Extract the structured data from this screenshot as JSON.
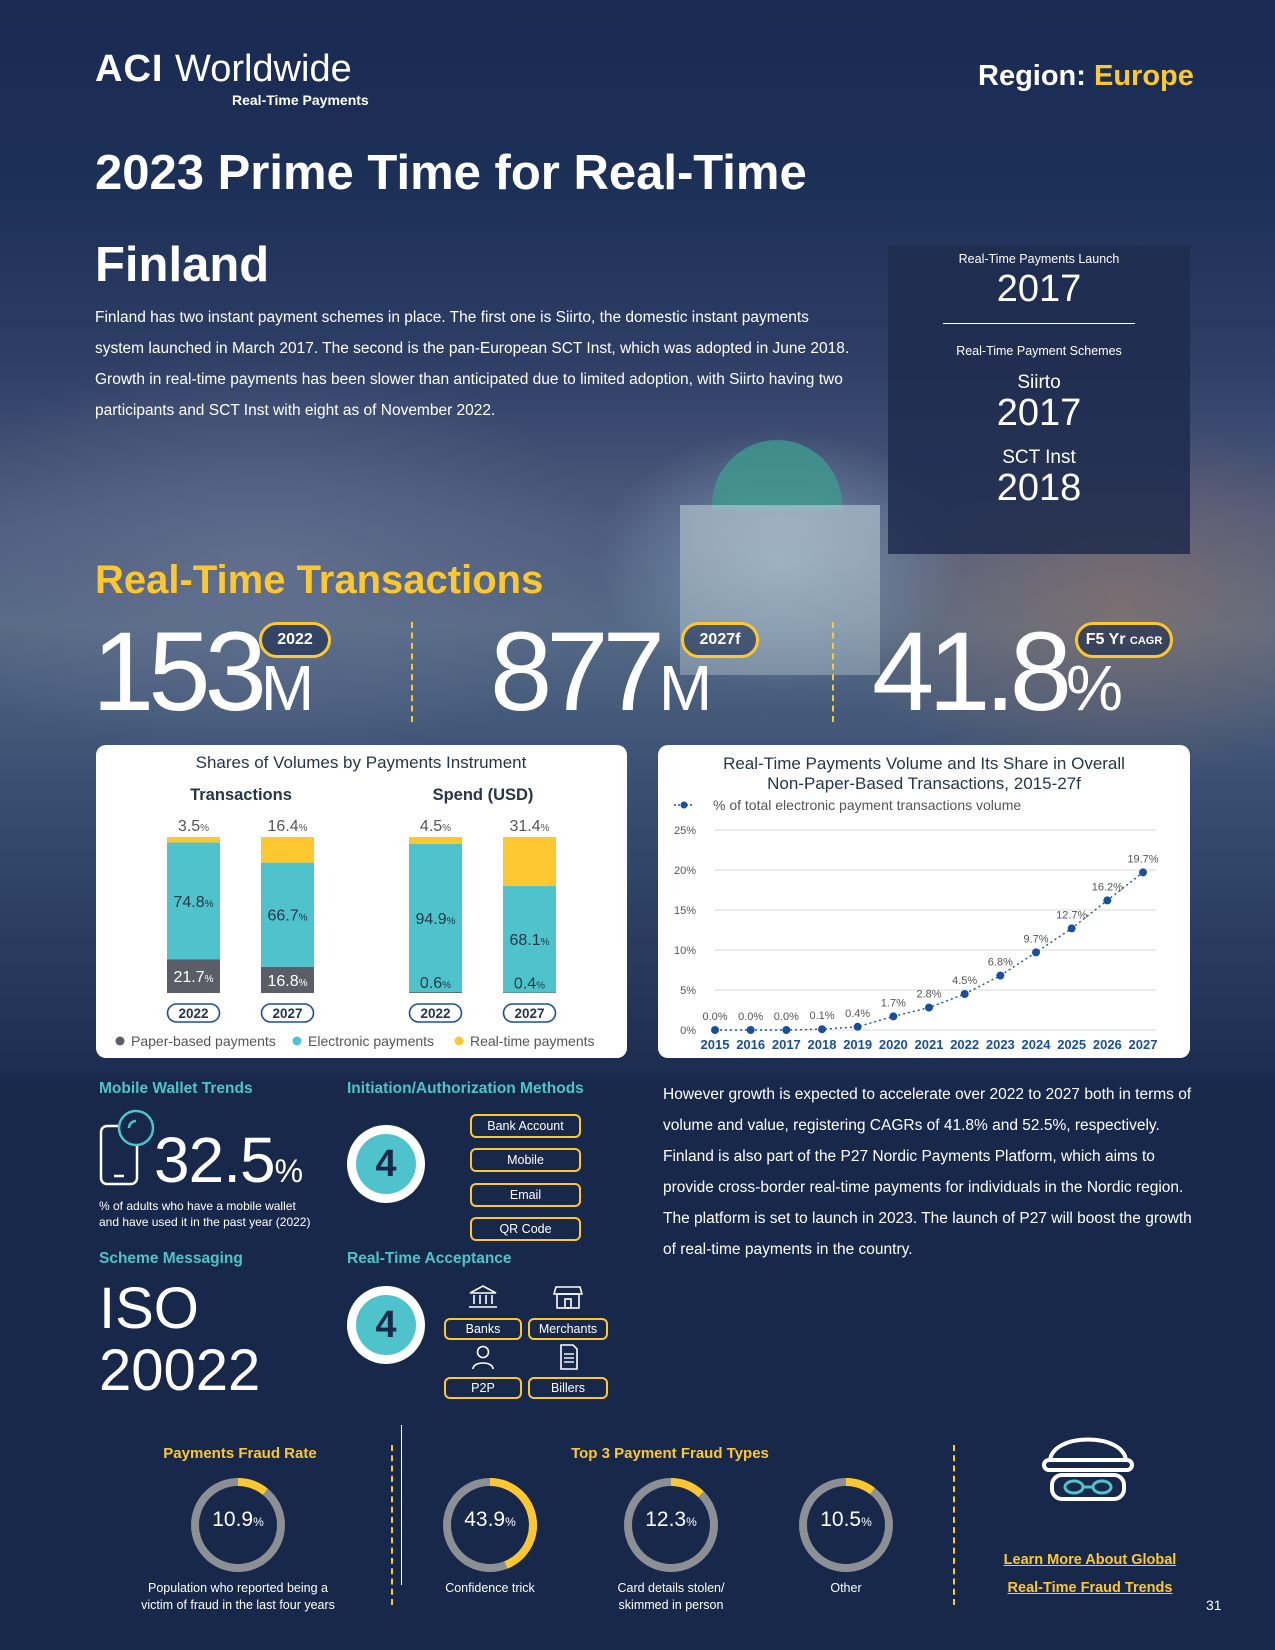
{
  "header": {
    "logo_brand": "ACI",
    "logo_word": "Worldwide",
    "logo_sub": "Real-Time Payments",
    "region_label": "Region:",
    "region_value": "Europe"
  },
  "title": "2023 Prime Time for Real-Time",
  "country": "Finland",
  "intro": "Finland has two instant payment schemes in place. The first one is Siirto, the domestic instant payments system launched in March 2017. The second is the pan-European SCT Inst, which was adopted in June 2018. Growth in real-time payments has been slower than anticipated due to limited adoption, with Siirto having two participants and SCT Inst with eight as of November 2022.",
  "launch": {
    "launch_label": "Real-Time Payments Launch",
    "launch_year": "2017",
    "schemes_label": "Real-Time Payment Schemes",
    "scheme1_name": "Siirto",
    "scheme1_year": "2017",
    "scheme2_name": "SCT Inst",
    "scheme2_year": "2018"
  },
  "rtt": {
    "title": "Real-Time Transactions",
    "stat1_value": "153",
    "stat1_unit": "M",
    "stat1_pill": "2022",
    "stat2_value": "877",
    "stat2_unit": "M",
    "stat2_pill": "2027f",
    "stat3_value": "41.8",
    "stat3_unit": "%",
    "stat3_pill": "F5 Yr",
    "stat3_pill_small": "CAGR"
  },
  "chart_data": [
    {
      "type": "bar",
      "stacked": true,
      "title": "Shares of Volumes by Payments Instrument",
      "groups": [
        {
          "name": "Transactions",
          "categories": [
            "2022",
            "2027"
          ]
        },
        {
          "name": "Spend (USD)",
          "categories": [
            "2022",
            "2027"
          ]
        }
      ],
      "series": [
        {
          "name": "Paper-based payments",
          "color": "#5b5e66",
          "values": [
            21.7,
            16.8,
            0.6,
            0.4
          ],
          "labels": [
            "21.7",
            "16.8",
            "0.6",
            "0.4"
          ]
        },
        {
          "name": "Electronic payments",
          "color": "#4fc3cc",
          "values": [
            74.8,
            66.7,
            94.9,
            68.1
          ],
          "labels": [
            "74.8",
            "66.7",
            "94.9",
            "68.1"
          ]
        },
        {
          "name": "Real-time payments",
          "color": "#fdc82f",
          "values": [
            3.5,
            16.4,
            4.5,
            31.4
          ],
          "labels": [
            "3.5",
            "16.4",
            "4.5",
            "31.4"
          ]
        }
      ],
      "unit": "%",
      "legend": "bottom"
    },
    {
      "type": "line",
      "title": "Real-Time Payments Volume and Its Share in Overall Non-Paper-Based Transactions, 2015-27f",
      "series": [
        {
          "name": "% of total electronic payment transactions volume",
          "color": "#1a4f9c",
          "x": [
            "2015",
            "2016",
            "2017",
            "2018",
            "2019",
            "2020",
            "2021",
            "2022",
            "2023",
            "2024",
            "2025",
            "2026",
            "2027"
          ],
          "values": [
            0.0,
            0.0,
            0.0,
            0.1,
            0.4,
            1.7,
            2.8,
            4.5,
            6.8,
            9.7,
            12.7,
            16.2,
            19.7
          ],
          "labels": [
            "0.0%",
            "0.0%",
            "0.0%",
            "0.1%",
            "0.4%",
            "1.7%",
            "2.8%",
            "4.5%",
            "6.8%",
            "9.7%",
            "12.7%",
            "16.2%",
            "19.7%"
          ]
        }
      ],
      "ylim": [
        0,
        25
      ],
      "yticks": [
        "0%",
        "5%",
        "10%",
        "15%",
        "20%",
        "25%"
      ],
      "grid": true,
      "legend": "top-left"
    }
  ],
  "mobile_wallet": {
    "heading": "Mobile Wallet Trends",
    "value": "32.5",
    "unit": "%",
    "caption_line1": "% of adults who have a mobile wallet",
    "caption_line2": "and have used it in the past year (2022)"
  },
  "initiation": {
    "heading": "Initiation/Authorization Methods",
    "count": "4",
    "methods": [
      "Bank Account",
      "Mobile",
      "Email",
      "QR Code"
    ]
  },
  "scheme_messaging": {
    "heading": "Scheme Messaging",
    "line1": "ISO",
    "line2": "20022"
  },
  "acceptance": {
    "heading": "Real-Time Acceptance",
    "count": "4",
    "items": [
      "Banks",
      "Merchants",
      "P2P",
      "Billers"
    ],
    "icons": [
      "bank-icon",
      "store-icon",
      "person-icon",
      "bill-icon"
    ]
  },
  "outlook": "However growth is expected to accelerate over 2022 to 2027 both in terms of volume and value, registering CAGRs of 41.8% and 52.5%, respectively. Finland is also part of the P27 Nordic Payments Platform, which aims to provide cross-border real-time payments for individuals in the Nordic region. The platform is set to launch in 2023. The launch of P27 will boost the growth of real-time payments in the country.",
  "fraud": {
    "rate_heading": "Payments Fraud Rate",
    "rate_value": "10.9",
    "rate_fraction": 0.109,
    "rate_caption_1": "Population who reported being a",
    "rate_caption_2": "victim of fraud in the last four years",
    "types_heading": "Top 3 Payment Fraud Types",
    "types": [
      {
        "value": "43.9",
        "fraction": 0.439,
        "caption_1": "Confidence trick",
        "caption_2": ""
      },
      {
        "value": "12.3",
        "fraction": 0.123,
        "caption_1": "Card details stolen/",
        "caption_2": "skimmed in person"
      },
      {
        "value": "10.5",
        "fraction": 0.105,
        "caption_1": "Other",
        "caption_2": ""
      }
    ],
    "unit": "%",
    "learn_line1": "Learn More About Global",
    "learn_line2": "Real-Time Fraud Trends"
  },
  "page_number": "31",
  "colors": {
    "navy": "#17284b",
    "yellow": "#fdc82f",
    "teal": "#4fc3cc",
    "gray": "#5b5e66",
    "blue": "#1a4f9c"
  }
}
